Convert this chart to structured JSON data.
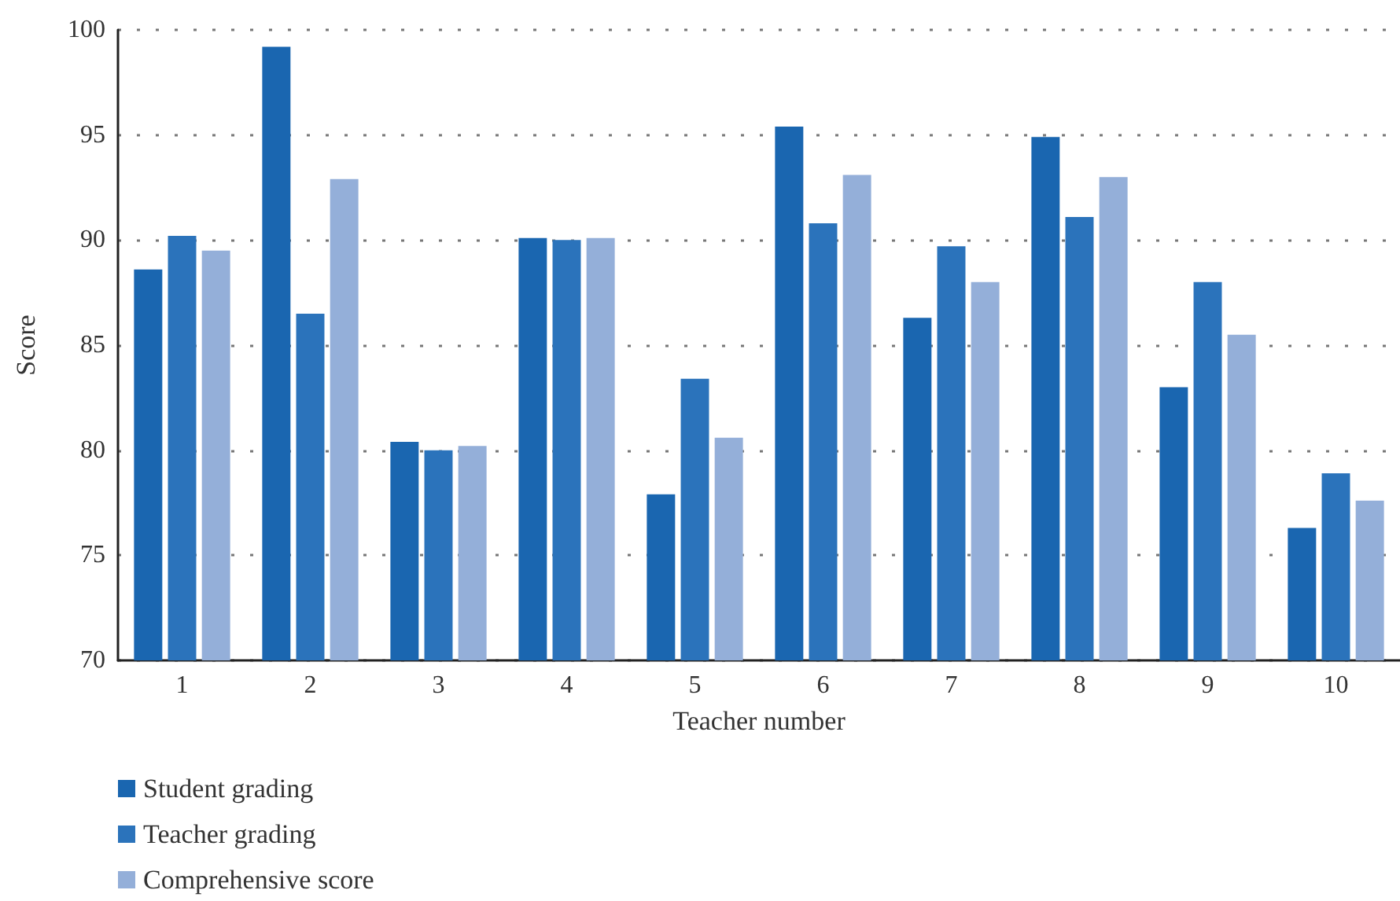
{
  "chart_data": {
    "type": "bar",
    "xlabel": "Teacher number",
    "ylabel": "Score",
    "categories": [
      "1",
      "2",
      "3",
      "4",
      "5",
      "6",
      "7",
      "8",
      "9",
      "10"
    ],
    "series": [
      {
        "name": "Student grading",
        "color": "#1a66b0",
        "values": [
          88.6,
          99.2,
          80.4,
          90.1,
          77.9,
          95.4,
          86.3,
          94.9,
          83.0,
          76.3
        ]
      },
      {
        "name": "Teacher grading",
        "color": "#2b73bb",
        "values": [
          90.2,
          86.5,
          80.0,
          90.0,
          83.4,
          90.8,
          89.7,
          91.1,
          88.0,
          78.9
        ]
      },
      {
        "name": "Comprehensive score",
        "color": "#94afd9",
        "values": [
          89.5,
          92.9,
          80.2,
          90.1,
          80.6,
          93.1,
          88.0,
          93.0,
          85.5,
          77.6
        ]
      }
    ],
    "ylim": [
      70,
      100
    ],
    "yticks": [
      70,
      75,
      80,
      85,
      90,
      95,
      100
    ],
    "grid": "y",
    "legend": "bottom left"
  }
}
